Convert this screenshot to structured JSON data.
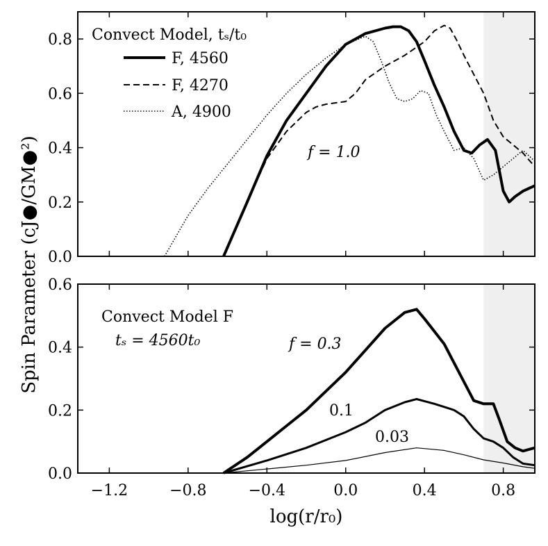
{
  "figure": {
    "ylabel": "Spin Parameter (cJ●/GM●²)",
    "xlabel": "log(r/r₀)",
    "shaded_region_x": [
      0.7,
      0.96
    ]
  },
  "chart_data": [
    {
      "type": "line",
      "panel": "top",
      "xlim": [
        -1.36,
        0.96
      ],
      "ylim": [
        0.0,
        0.9
      ],
      "xticks": [
        -1.2,
        -0.8,
        -0.4,
        0.0,
        0.4,
        0.8
      ],
      "yticks": [
        0.0,
        0.2,
        0.4,
        0.6,
        0.8
      ],
      "ytick_labels": [
        "0.0",
        "0.2",
        "0.4",
        "0.6",
        "0.8"
      ],
      "legend_title": "Convect Model, tₛ/t₀",
      "annotation": "f = 1.0",
      "series": [
        {
          "name": "F, 4560",
          "style": "solid-thick",
          "x": [
            -0.62,
            -0.5,
            -0.4,
            -0.3,
            -0.2,
            -0.1,
            0.0,
            0.1,
            0.2,
            0.24,
            0.28,
            0.32,
            0.36,
            0.4,
            0.45,
            0.5,
            0.55,
            0.6,
            0.64,
            0.68,
            0.72,
            0.76,
            0.8,
            0.83,
            0.86,
            0.9,
            0.96
          ],
          "y": [
            0.0,
            0.2,
            0.37,
            0.5,
            0.6,
            0.7,
            0.78,
            0.82,
            0.84,
            0.845,
            0.845,
            0.83,
            0.79,
            0.72,
            0.63,
            0.55,
            0.46,
            0.39,
            0.38,
            0.41,
            0.43,
            0.39,
            0.24,
            0.2,
            0.22,
            0.24,
            0.26
          ]
        },
        {
          "name": "F, 4270",
          "style": "dashed",
          "x": [
            -0.62,
            -0.5,
            -0.4,
            -0.3,
            -0.2,
            -0.15,
            -0.1,
            0.0,
            0.05,
            0.1,
            0.2,
            0.3,
            0.4,
            0.45,
            0.5,
            0.53,
            0.56,
            0.6,
            0.65,
            0.7,
            0.75,
            0.8,
            0.85,
            0.9,
            0.96
          ],
          "y": [
            0.0,
            0.2,
            0.36,
            0.46,
            0.53,
            0.55,
            0.56,
            0.57,
            0.6,
            0.65,
            0.7,
            0.74,
            0.79,
            0.83,
            0.85,
            0.84,
            0.8,
            0.74,
            0.67,
            0.6,
            0.5,
            0.44,
            0.41,
            0.38,
            0.33
          ]
        },
        {
          "name": "A, 4900",
          "style": "dotted",
          "x": [
            -0.92,
            -0.8,
            -0.7,
            -0.6,
            -0.5,
            -0.4,
            -0.3,
            -0.2,
            -0.1,
            0.0,
            0.1,
            0.14,
            0.18,
            0.22,
            0.26,
            0.3,
            0.34,
            0.38,
            0.42,
            0.46,
            0.5,
            0.55,
            0.6,
            0.65,
            0.7,
            0.75,
            0.8,
            0.85,
            0.9,
            0.96
          ],
          "y": [
            0.0,
            0.15,
            0.25,
            0.34,
            0.43,
            0.52,
            0.6,
            0.67,
            0.73,
            0.78,
            0.81,
            0.79,
            0.72,
            0.64,
            0.58,
            0.57,
            0.58,
            0.61,
            0.6,
            0.52,
            0.46,
            0.39,
            0.4,
            0.36,
            0.28,
            0.3,
            0.33,
            0.36,
            0.39,
            0.35
          ]
        }
      ]
    },
    {
      "type": "line",
      "panel": "bottom",
      "xlim": [
        -1.36,
        0.96
      ],
      "ylim": [
        0.0,
        0.6
      ],
      "xticks": [
        -1.2,
        -0.8,
        -0.4,
        0.0,
        0.4,
        0.8
      ],
      "xtick_labels": [
        "−1.2",
        "−0.8",
        "−0.4",
        "0.0",
        "0.4",
        "0.8"
      ],
      "yticks": [
        0.0,
        0.2,
        0.4,
        0.6
      ],
      "ytick_labels": [
        "0.0",
        "0.2",
        "0.4",
        "0.6"
      ],
      "model_label": "Convect Model F",
      "model_sublabel": "tₛ = 4560t₀",
      "series": [
        {
          "name": "f = 0.3",
          "style": "solid-thick",
          "x": [
            -0.62,
            -0.5,
            -0.4,
            -0.3,
            -0.2,
            -0.1,
            0.0,
            0.1,
            0.2,
            0.3,
            0.36,
            0.4,
            0.45,
            0.5,
            0.55,
            0.6,
            0.65,
            0.7,
            0.75,
            0.78,
            0.82,
            0.86,
            0.9,
            0.96
          ],
          "y": [
            0.0,
            0.05,
            0.1,
            0.15,
            0.2,
            0.26,
            0.32,
            0.39,
            0.46,
            0.51,
            0.52,
            0.49,
            0.45,
            0.41,
            0.35,
            0.29,
            0.23,
            0.22,
            0.22,
            0.17,
            0.1,
            0.08,
            0.07,
            0.08
          ]
        },
        {
          "name": "0.1",
          "style": "solid-medium",
          "x": [
            -0.62,
            -0.4,
            -0.2,
            0.0,
            0.1,
            0.2,
            0.3,
            0.36,
            0.45,
            0.55,
            0.6,
            0.65,
            0.7,
            0.75,
            0.8,
            0.85,
            0.9,
            0.96
          ],
          "y": [
            0.0,
            0.04,
            0.08,
            0.13,
            0.16,
            0.2,
            0.225,
            0.235,
            0.22,
            0.2,
            0.18,
            0.14,
            0.11,
            0.1,
            0.08,
            0.05,
            0.03,
            0.025
          ]
        },
        {
          "name": "0.03",
          "style": "solid-thin",
          "x": [
            -0.62,
            -0.4,
            -0.2,
            0.0,
            0.2,
            0.36,
            0.5,
            0.6,
            0.7,
            0.8,
            0.9,
            0.96
          ],
          "y": [
            0.0,
            0.013,
            0.025,
            0.04,
            0.065,
            0.08,
            0.072,
            0.058,
            0.042,
            0.032,
            0.02,
            0.015
          ]
        }
      ]
    }
  ]
}
